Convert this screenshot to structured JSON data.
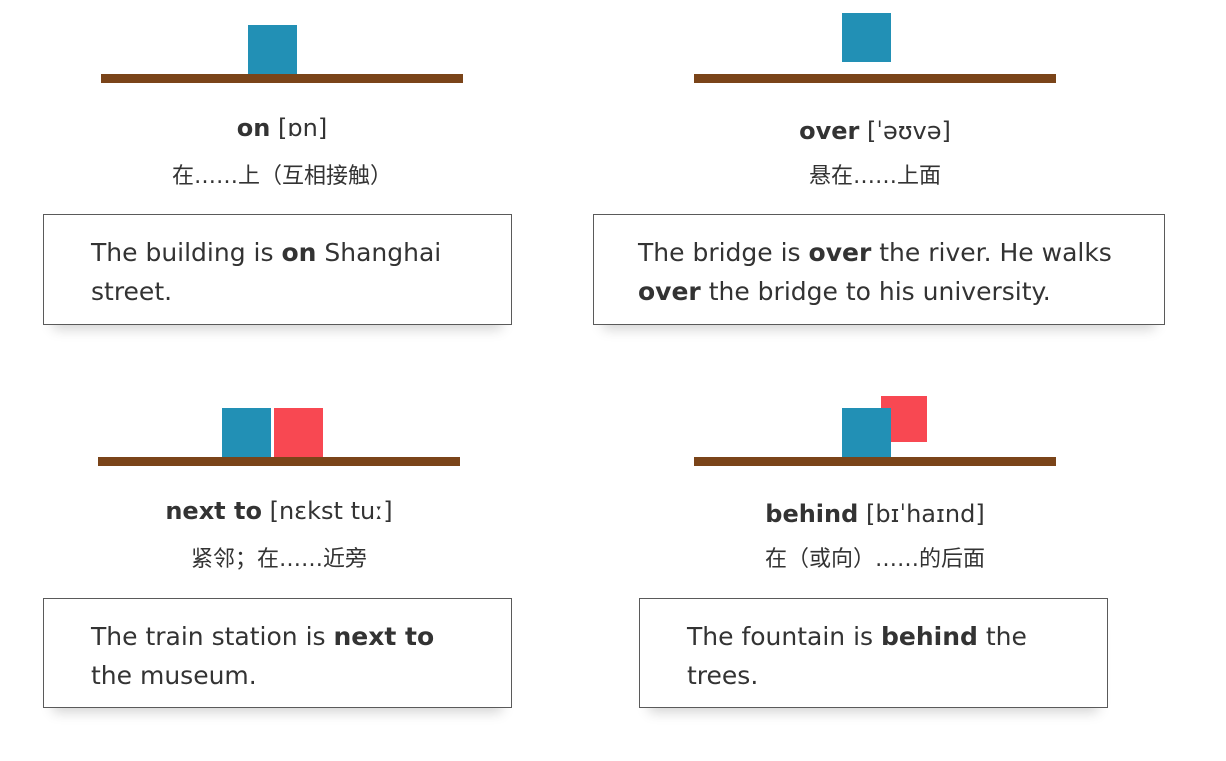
{
  "colors": {
    "shelf": "#7a4419",
    "blue_box": "#2290b5",
    "red_box": "#f84852"
  },
  "cards": [
    {
      "word": "on",
      "phonetic": "[ɒn]",
      "meaning": "在……上（互相接触）",
      "example": {
        "before": "The building is ",
        "bold": "on",
        "after": " Shanghai street.",
        "line2_bold": "",
        "line2_after": ""
      }
    },
    {
      "word": "over",
      "phonetic": "[ˈəʊvə]",
      "meaning": "悬在……上面",
      "example": {
        "before": "The bridge is ",
        "bold": "over",
        "after": " the river. He walks",
        "line2_bold": "over",
        "line2_after": " the bridge to his university."
      }
    },
    {
      "word": "next to",
      "phonetic": "[nɛkst tuː]",
      "meaning": "紧邻；在……近旁",
      "example": {
        "before": "The train station is ",
        "bold": "next to",
        "after": " the museum.",
        "line2_bold": "",
        "line2_after": ""
      }
    },
    {
      "word": "behind",
      "phonetic": "[bɪˈhaɪnd]",
      "meaning": "在（或向）……的后面",
      "example": {
        "before": "The fountain is ",
        "bold": "behind",
        "after": " the trees.",
        "line2_bold": "",
        "line2_after": ""
      }
    }
  ]
}
